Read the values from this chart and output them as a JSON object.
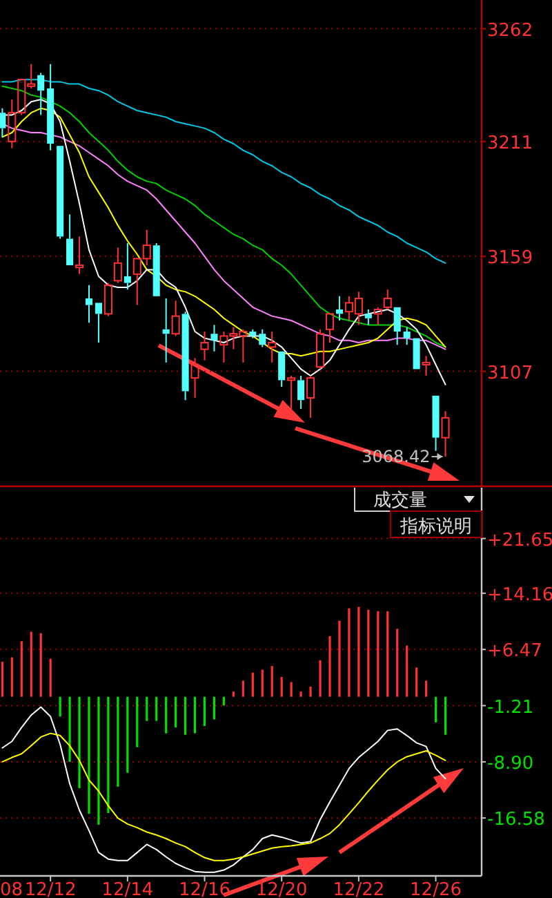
{
  "chart_data": [
    {
      "type": "candlestick",
      "categories": [
        null,
        null,
        null,
        null,
        null,
        null,
        null,
        null,
        null,
        null,
        null,
        null,
        null,
        null,
        null,
        null,
        null,
        null,
        null,
        null,
        null,
        null,
        null,
        null,
        null,
        null,
        null,
        null,
        null,
        null,
        null,
        null,
        null,
        null,
        null,
        null,
        null,
        null,
        null,
        null,
        null,
        null,
        null,
        null,
        null,
        null,
        null
      ],
      "ohlc": [
        [
          3224,
          3226,
          3213,
          3217
        ],
        [
          3211,
          3230,
          3208,
          3224
        ],
        [
          3224,
          3239,
          3223,
          3239
        ],
        [
          3236,
          3246,
          3235,
          3237
        ],
        [
          3241,
          3242,
          3223,
          3234
        ],
        [
          3235,
          3246,
          3207,
          3210
        ],
        [
          3209,
          3209,
          3167,
          3168
        ],
        [
          3167,
          3178,
          3155,
          3155
        ],
        [
          3154,
          3168,
          3151,
          3155
        ],
        [
          3140,
          3146,
          3129,
          3137
        ],
        [
          3138,
          3138,
          3120,
          3133
        ],
        [
          3133,
          3147,
          3132,
          3146
        ],
        [
          3148,
          3163,
          3147,
          3156
        ],
        [
          3150,
          3165,
          3144,
          3147
        ],
        [
          3151,
          3158,
          3137,
          3158
        ],
        [
          3158,
          3171,
          3155,
          3164
        ],
        [
          3164,
          3165,
          3141,
          3141
        ],
        [
          3126,
          3140,
          3111,
          3124
        ],
        [
          3124,
          3139,
          3123,
          3132
        ],
        [
          3133,
          3134,
          3094,
          3098
        ],
        [
          3104,
          3113,
          3095,
          3110
        ],
        [
          3117,
          3125,
          3112,
          3120
        ],
        [
          3124,
          3128,
          3116,
          3121
        ],
        [
          3119,
          3125,
          3111,
          3123
        ],
        [
          3123,
          3127,
          3117,
          3124
        ],
        [
          3123,
          3126,
          3111,
          3125
        ],
        [
          3125,
          3126,
          3122,
          3123
        ],
        [
          3124,
          3126,
          3118,
          3119
        ],
        [
          3118,
          3125,
          3111,
          3120
        ],
        [
          3116,
          3116,
          3100,
          3103
        ],
        [
          3103,
          3105,
          3088,
          3104
        ],
        [
          3103,
          3105,
          3090,
          3094
        ],
        [
          3095,
          3105,
          3086,
          3104
        ],
        [
          3109,
          3126,
          3108,
          3124
        ],
        [
          3126,
          3133,
          3120,
          3133
        ],
        [
          3135,
          3141,
          3130,
          3133
        ],
        [
          3134,
          3141,
          3130,
          3138
        ],
        [
          3133,
          3143,
          3128,
          3140
        ],
        [
          3133,
          3135,
          3128,
          3131
        ],
        [
          3133,
          3136,
          3128,
          3135
        ],
        [
          3136,
          3144,
          3135,
          3140
        ],
        [
          3136,
          3136,
          3119,
          3125
        ],
        [
          3125,
          3127,
          3119,
          3122
        ],
        [
          3122,
          3122,
          3108,
          3108
        ],
        [
          3110,
          3114,
          3105,
          3111
        ],
        [
          3096,
          3096,
          3071,
          3077
        ],
        [
          3077,
          3089,
          3068.42,
          3086
        ]
      ],
      "series": [
        {
          "type": "line",
          "color": "#00c8e8",
          "values": [
            3238,
            3238,
            3239,
            3239,
            3239,
            3238,
            3238,
            3237,
            3237,
            3235,
            3234,
            3232,
            3229,
            3227,
            3225,
            3224,
            3223,
            3222,
            3220,
            3219,
            3218,
            3217,
            3215,
            3212,
            3210,
            3207,
            3205,
            3202,
            3200,
            3197,
            3195,
            3192,
            3190,
            3187,
            3185,
            3182,
            3180,
            3177,
            3175,
            3173,
            3170,
            3168,
            3165,
            3163,
            3161,
            3158,
            3156
          ]
        },
        {
          "type": "line",
          "color": "#00d000",
          "values": [
            3236,
            3235,
            3234,
            3232,
            3231,
            3229,
            3227,
            3224,
            3220,
            3215,
            3211,
            3207,
            3202,
            3198,
            3195,
            3193,
            3192,
            3189,
            3187,
            3185,
            3182,
            3178,
            3175,
            3172,
            3169,
            3167,
            3164,
            3162,
            3158,
            3155,
            3151,
            3146,
            3141,
            3136,
            3133,
            3131,
            3130,
            3129,
            3128,
            3128,
            3128,
            3128,
            3127,
            3125,
            3123,
            3120,
            3118
          ]
        },
        {
          "type": "line",
          "color": "#ff80ff",
          "values": [
            3219,
            3217,
            3216,
            3215,
            3215,
            3214,
            3213,
            3211,
            3209,
            3206,
            3203,
            3200,
            3196,
            3193,
            3191,
            3189,
            3185,
            3180,
            3175,
            3170,
            3165,
            3159,
            3153,
            3148,
            3144,
            3140,
            3136,
            3134,
            3132,
            3131,
            3130,
            3128,
            3126,
            3124,
            3123,
            3121,
            3121,
            3120,
            3121,
            3121,
            3121,
            3122,
            3122,
            3121,
            3121,
            3119,
            3117
          ]
        },
        {
          "type": "line",
          "color": "#ffff00",
          "values": [
            3213,
            3215,
            3220,
            3224,
            3226,
            3225,
            3222,
            3214,
            3206,
            3195,
            3188,
            3181,
            3173,
            3166,
            3160,
            3153,
            3150,
            3146,
            3144,
            3143,
            3141,
            3138,
            3135,
            3131,
            3128,
            3125,
            3123,
            3120,
            3117,
            3115,
            3115,
            3114,
            3115,
            3116,
            3116,
            3117,
            3118,
            3119,
            3120,
            3122,
            3126,
            3130,
            3131,
            3130,
            3128,
            3123,
            3118
          ]
        },
        {
          "type": "line",
          "color": "#ffffff",
          "values": [
            3223,
            3223,
            3225,
            3229,
            3230,
            3228,
            3220,
            3202,
            3183,
            3162,
            3150,
            3146,
            3145,
            3145,
            3148,
            3153,
            3153,
            3148,
            3145,
            3136,
            3125,
            3122,
            3121,
            3120,
            3122,
            3123,
            3123,
            3123,
            3121,
            3118,
            3113,
            3108,
            3105,
            3108,
            3112,
            3119,
            3126,
            3132,
            3133,
            3134,
            3135,
            3133,
            3130,
            3126,
            3119,
            3110,
            3101
          ]
        }
      ],
      "ylim": [
        3055,
        3275
      ],
      "yticks": [
        3262,
        3211,
        3159,
        3107
      ],
      "grid": "y",
      "tick_labels": "y",
      "annotations": [
        "3068.42"
      ]
    },
    {
      "type": "bar",
      "categories": [
        null,
        null,
        null,
        null,
        null,
        "12/12",
        null,
        null,
        null,
        null,
        null,
        null,
        null,
        "12/14",
        null,
        null,
        null,
        null,
        null,
        null,
        null,
        "12/16",
        null,
        null,
        null,
        null,
        null,
        null,
        null,
        "12/20",
        null,
        null,
        null,
        null,
        null,
        null,
        null,
        "12/22",
        null,
        null,
        null,
        null,
        null,
        null,
        null,
        "12/26",
        null
      ],
      "series": [
        {
          "type": "bar",
          "values": [
            4.8,
            5.4,
            7.6,
            8.9,
            8.7,
            5.2,
            -2.7,
            -8.9,
            -12.5,
            -16.0,
            -17.5,
            -15.9,
            -12.3,
            -10.4,
            -6.9,
            -3.3,
            -3.3,
            -5.0,
            -4.2,
            -5.2,
            -5.0,
            -4.0,
            -3.1,
            -1.2,
            0.7,
            2.2,
            3.3,
            3.7,
            4.2,
            2.7,
            2.0,
            0.7,
            1.4,
            5.0,
            8.3,
            10.4,
            12.1,
            12.3,
            11.9,
            11.7,
            11.7,
            9.3,
            7.0,
            4.0,
            2.2,
            -3.5,
            -5.2
          ],
          "colors": [
            "#ff3232",
            "#ff3232",
            "#ff3232",
            "#ff3232",
            "#ff3232",
            "#ff3232",
            "#00e000",
            "#00e000",
            "#00e000",
            "#00e000",
            "#00e000",
            "#00e000",
            "#00e000",
            "#00e000",
            "#00e000",
            "#00e000",
            "#00e000",
            "#00e000",
            "#00e000",
            "#00e000",
            "#00e000",
            "#00e000",
            "#00e000",
            "#00e000",
            "#ff3232",
            "#ff3232",
            "#ff3232",
            "#ff3232",
            "#ff3232",
            "#ff3232",
            "#ff3232",
            "#ff3232",
            "#ff3232",
            "#ff3232",
            "#ff3232",
            "#ff3232",
            "#ff3232",
            "#ff3232",
            "#ff3232",
            "#ff3232",
            "#ff3232",
            "#ff3232",
            "#ff3232",
            "#ff3232",
            "#ff3232",
            "#00e000",
            "#00e000"
          ]
        },
        {
          "type": "line",
          "color": "#ffffff",
          "values": [
            -7.0,
            -6.1,
            -4.2,
            -2.5,
            -1.4,
            -2.7,
            -6.5,
            -11.9,
            -15.5,
            -18.3,
            -21.3,
            -22.2,
            -22.4,
            -22.4,
            -21.3,
            -20.2,
            -20.9,
            -21.9,
            -22.8,
            -23.4,
            -23.9,
            -24.0,
            -24.0,
            -23.7,
            -23.0,
            -21.9,
            -20.9,
            -19.4,
            -18.9,
            -19.2,
            -19.6,
            -20.0,
            -19.8,
            -16.8,
            -14.4,
            -12.1,
            -9.8,
            -8.3,
            -7.2,
            -6.1,
            -4.6,
            -4.4,
            -5.3,
            -6.3,
            -6.8,
            -9.8,
            -11.2
          ]
        },
        {
          "type": "line",
          "color": "#ffff00",
          "values": [
            -8.9,
            -8.3,
            -7.8,
            -6.7,
            -5.5,
            -5.0,
            -5.3,
            -6.7,
            -8.7,
            -11.4,
            -12.9,
            -14.9,
            -16.6,
            -17.4,
            -17.9,
            -18.5,
            -18.9,
            -19.4,
            -20.0,
            -20.5,
            -21.3,
            -22.0,
            -22.4,
            -22.4,
            -22.2,
            -21.9,
            -21.5,
            -21.1,
            -20.7,
            -20.5,
            -20.4,
            -20.2,
            -20.0,
            -19.4,
            -18.7,
            -17.5,
            -16.0,
            -14.5,
            -12.9,
            -11.4,
            -10.0,
            -8.9,
            -8.2,
            -7.8,
            -7.4,
            -8.0,
            -8.7
          ]
        }
      ],
      "ylim": [
        -24.5,
        28.6
      ],
      "yticks": [
        {
          "value": 21.65,
          "label": "+21.65"
        },
        {
          "value": 14.16,
          "label": "+14.16"
        },
        {
          "value": 6.47,
          "label": "+6.47"
        },
        -1.21,
        {
          "value": -8.9,
          "label": "-8.90"
        },
        -16.58
      ],
      "grid": "y",
      "annotations": [
        "成交量",
        "指标说明",
        "08"
      ]
    }
  ]
}
